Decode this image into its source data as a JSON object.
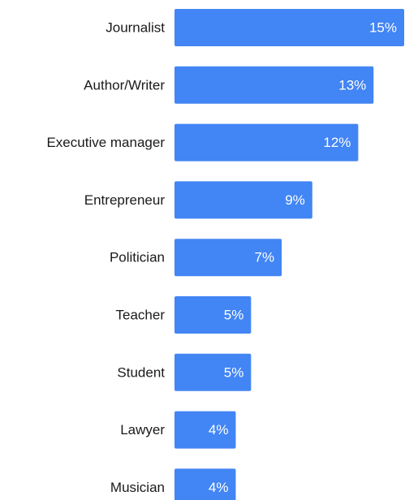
{
  "chart_data": {
    "type": "bar",
    "orientation": "horizontal",
    "categories": [
      "Journalist",
      "Author/Writer",
      "Executive manager",
      "Entrepreneur",
      "Politician",
      "Teacher",
      "Student",
      "Lawyer",
      "Musician"
    ],
    "values": [
      15,
      13,
      12,
      9,
      7,
      5,
      5,
      4,
      4
    ],
    "value_labels": [
      "15%",
      "13%",
      "12%",
      "9%",
      "7%",
      "5%",
      "5%",
      "4%",
      "4%"
    ],
    "unit": "%",
    "title": "",
    "xlabel": "",
    "ylabel": "",
    "xlim": [
      0,
      15
    ],
    "grid": false,
    "legend": "none",
    "bar_color": "#4285f4",
    "label_color": "#1a1a1a",
    "value_label_color": "#ffffff"
  }
}
